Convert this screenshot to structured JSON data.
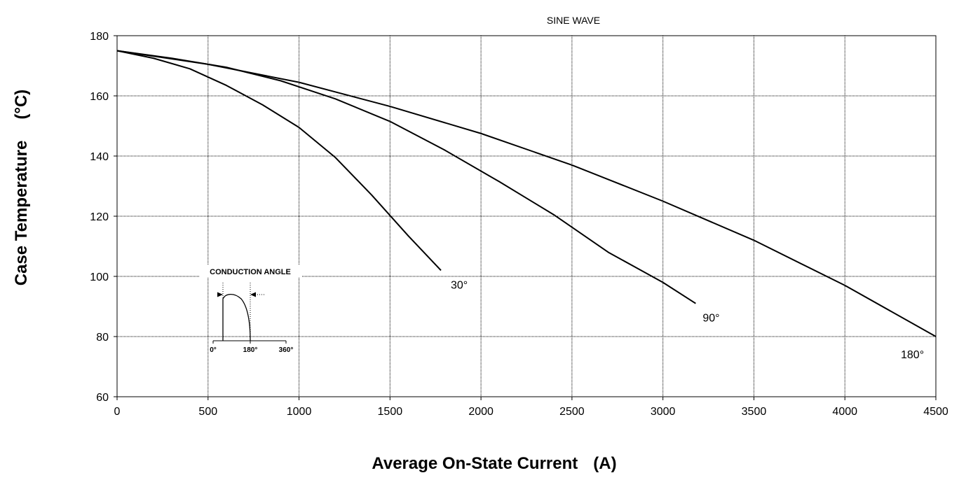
{
  "chart_data": {
    "type": "line",
    "title": "SINE WAVE",
    "xlabel": "Average On-State Current",
    "xunit": "(A)",
    "ylabel": "Case Temperature",
    "yunit": "(°C)",
    "xlim": [
      0,
      4500
    ],
    "ylim": [
      60,
      180
    ],
    "xticks": [
      0,
      500,
      1000,
      1500,
      2000,
      2500,
      3000,
      3500,
      4000,
      4500
    ],
    "yticks": [
      60,
      80,
      100,
      120,
      140,
      160,
      180
    ],
    "grid": true,
    "series": [
      {
        "name": "30°",
        "x": [
          0,
          200,
          400,
          600,
          800,
          1000,
          1200,
          1400,
          1600,
          1780
        ],
        "y": [
          175,
          172.5,
          169,
          163.5,
          157,
          149.5,
          139.5,
          127,
          113.5,
          102
        ]
      },
      {
        "name": "90°",
        "x": [
          0,
          300,
          600,
          900,
          1200,
          1500,
          1800,
          2100,
          2400,
          2700,
          3000,
          3180
        ],
        "y": [
          175,
          172.5,
          169.5,
          165,
          159,
          151.5,
          142,
          131.5,
          120.5,
          108,
          98,
          91
        ]
      },
      {
        "name": "180°",
        "x": [
          0,
          500,
          1000,
          1500,
          2000,
          2500,
          3000,
          3500,
          4000,
          4500
        ],
        "y": [
          175,
          170.5,
          164.5,
          156.5,
          147.5,
          137,
          125,
          112,
          97,
          80
        ]
      }
    ]
  },
  "inset": {
    "caption": "CONDUCTION ANGLE",
    "ticks": [
      "0°",
      "180°",
      "360°"
    ]
  }
}
